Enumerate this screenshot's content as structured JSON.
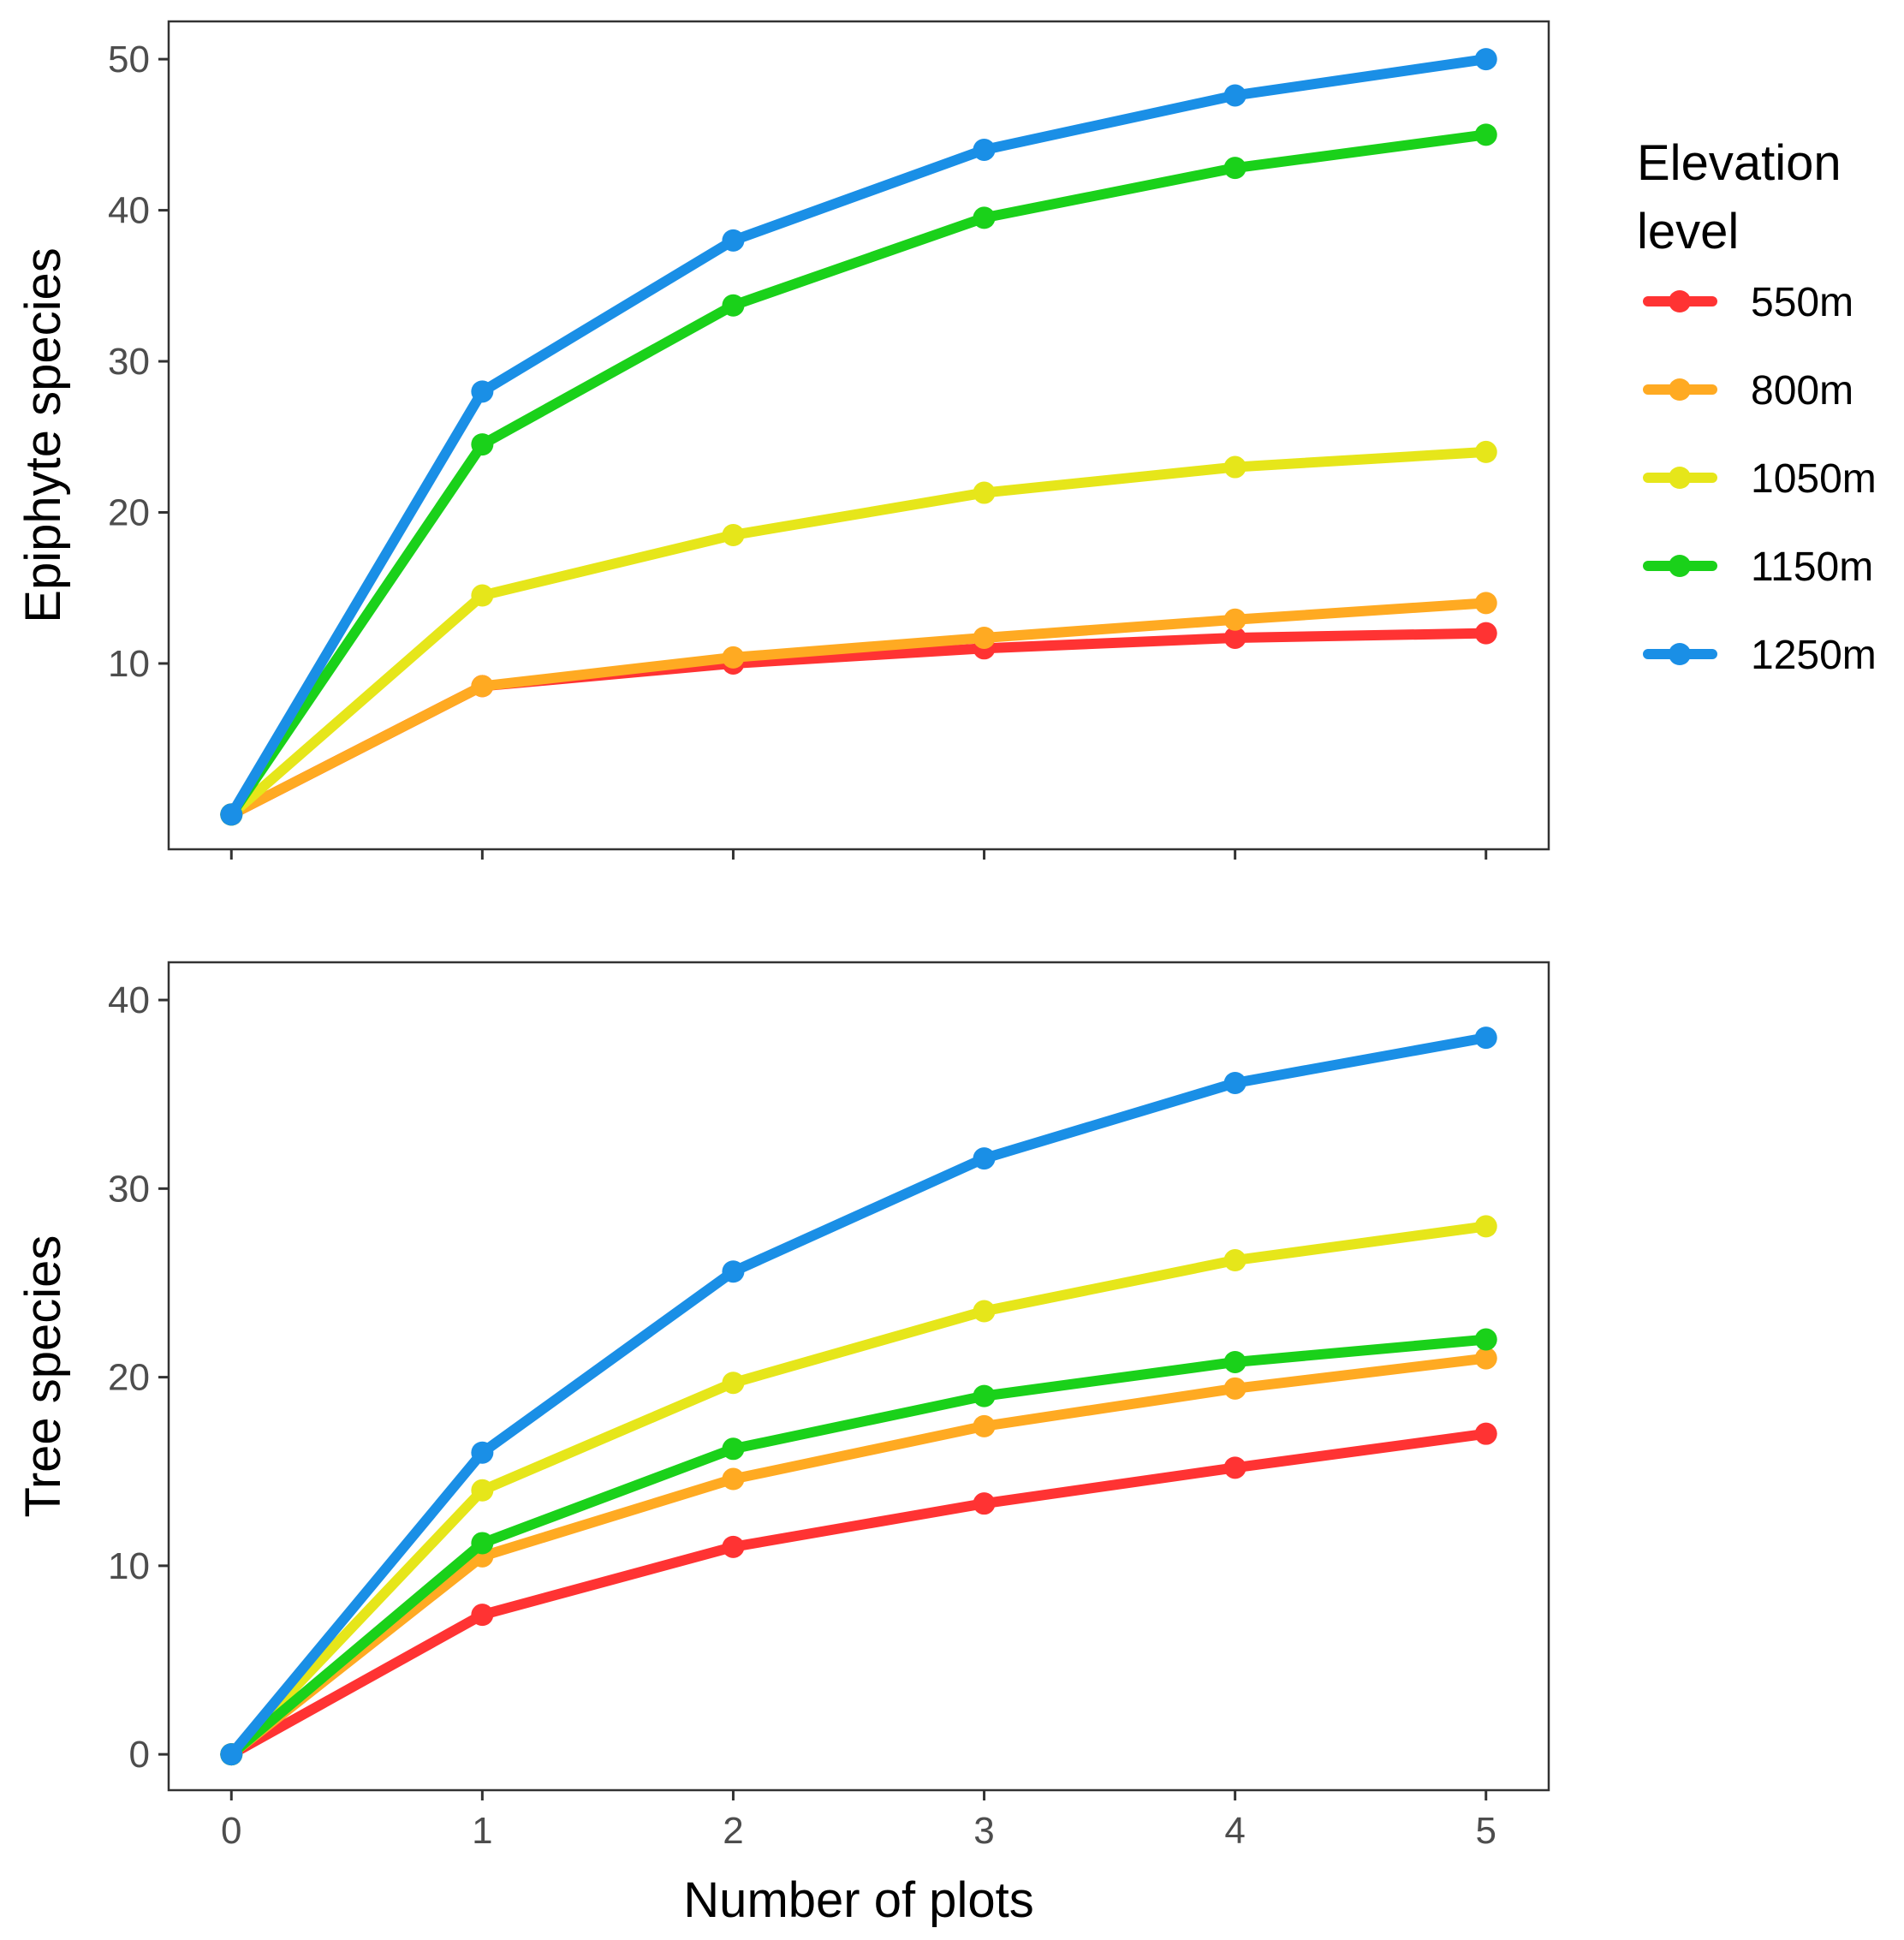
{
  "chart_data": [
    {
      "type": "line",
      "ylabel": "Epiphyte species",
      "xlabel": "",
      "x": [
        0,
        1,
        2,
        3,
        4,
        5
      ],
      "xlim": [
        -0.25,
        5.25
      ],
      "ylim": [
        -2.3,
        52.5
      ],
      "yticks": [
        10,
        20,
        30,
        40,
        50
      ],
      "xticks_labeled": false,
      "grid": false,
      "series": [
        {
          "name": "550m",
          "color": "#ff3333",
          "values": [
            0,
            8.5,
            10.0,
            11.0,
            11.7,
            12.0
          ]
        },
        {
          "name": "800m",
          "color": "#ffaa22",
          "values": [
            0,
            8.5,
            10.4,
            11.7,
            12.9,
            14.0
          ]
        },
        {
          "name": "1050m",
          "color": "#e6e61a",
          "values": [
            0,
            14.5,
            18.5,
            21.3,
            23.0,
            24.0
          ]
        },
        {
          "name": "1150m",
          "color": "#1ad11a",
          "values": [
            0,
            24.5,
            33.7,
            39.5,
            42.8,
            45.0
          ]
        },
        {
          "name": "1250m",
          "color": "#1a8fe6",
          "values": [
            0,
            28.0,
            38.0,
            44.0,
            47.6,
            50.0
          ]
        }
      ]
    },
    {
      "type": "line",
      "ylabel": "Tree species",
      "xlabel": "Number of plots",
      "x": [
        0,
        1,
        2,
        3,
        4,
        5
      ],
      "xlim": [
        -0.25,
        5.25
      ],
      "ylim": [
        -1.9,
        42.0
      ],
      "yticks": [
        0,
        10,
        20,
        30,
        40
      ],
      "xticks": [
        0,
        1,
        2,
        3,
        4,
        5
      ],
      "xticks_labeled": true,
      "grid": false,
      "series": [
        {
          "name": "550m",
          "color": "#ff3333",
          "values": [
            0,
            7.4,
            11.0,
            13.3,
            15.2,
            17.0
          ]
        },
        {
          "name": "800m",
          "color": "#ffaa22",
          "values": [
            0,
            10.5,
            14.6,
            17.4,
            19.4,
            21.0
          ]
        },
        {
          "name": "1050m",
          "color": "#e6e61a",
          "values": [
            0,
            14.0,
            19.7,
            23.5,
            26.2,
            28.0
          ]
        },
        {
          "name": "1150m",
          "color": "#1ad11a",
          "values": [
            0,
            11.2,
            16.2,
            19.0,
            20.8,
            22.0
          ]
        },
        {
          "name": "1250m",
          "color": "#1a8fe6",
          "values": [
            0,
            16.0,
            25.6,
            31.6,
            35.6,
            38.0
          ]
        }
      ]
    }
  ],
  "legend": {
    "title_lines": [
      "Elevation",
      "level"
    ],
    "placement": "right",
    "items": [
      {
        "label": "550m",
        "color": "#ff3333"
      },
      {
        "label": "800m",
        "color": "#ffaa22"
      },
      {
        "label": "1050m",
        "color": "#e6e61a"
      },
      {
        "label": "1150m",
        "color": "#1ad11a"
      },
      {
        "label": "1250m",
        "color": "#1a8fe6"
      }
    ]
  }
}
